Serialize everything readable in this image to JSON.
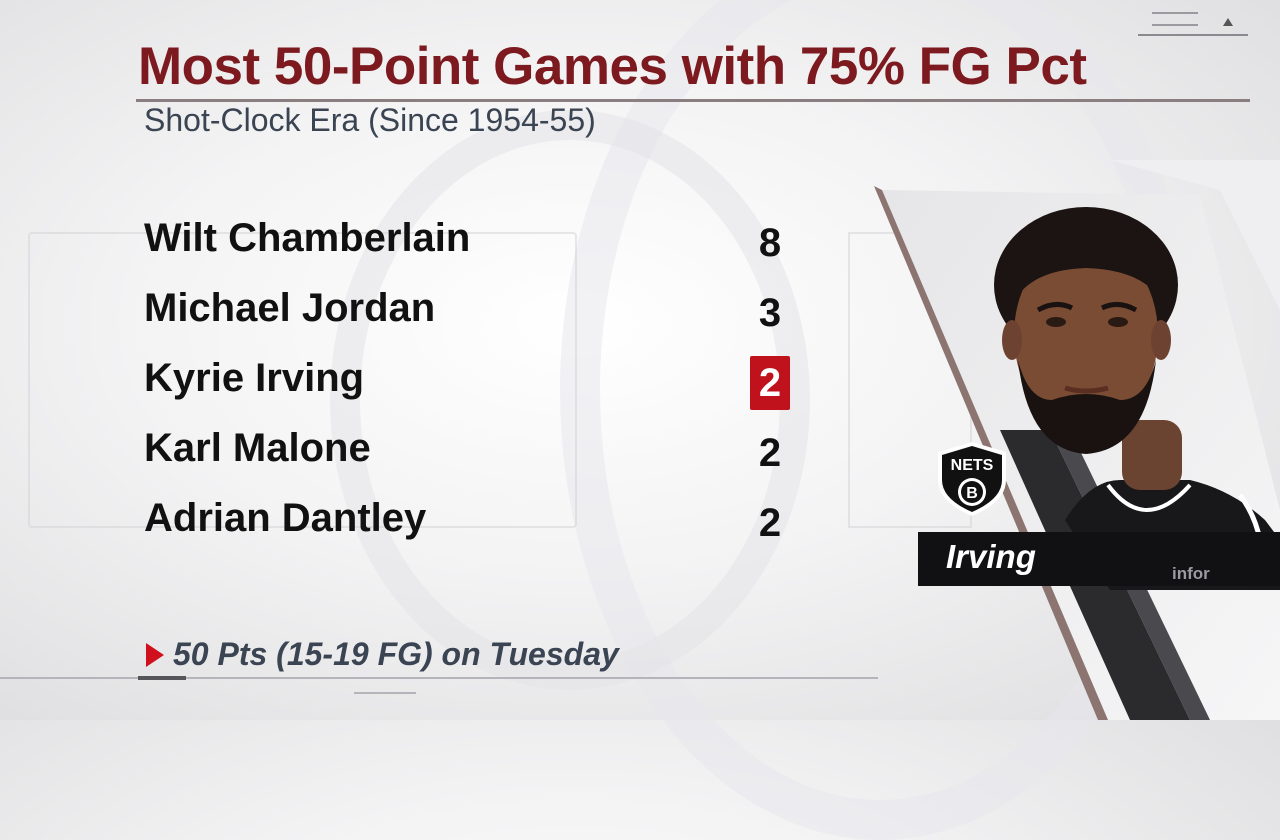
{
  "header": {
    "title": "Most 50-Point Games with 75% FG Pct",
    "subtitle": "Shot-Clock Era (Since 1954-55)"
  },
  "leaderboard": {
    "rows": [
      {
        "name": "Wilt Chamberlain",
        "value": "8",
        "highlighted": false
      },
      {
        "name": "Michael Jordan",
        "value": "3",
        "highlighted": false
      },
      {
        "name": "Kyrie Irving",
        "value": "2",
        "highlighted": true
      },
      {
        "name": "Karl Malone",
        "value": "2",
        "highlighted": false
      },
      {
        "name": "Adrian Dantley",
        "value": "2",
        "highlighted": false
      }
    ],
    "highlight_color": "#c0121c"
  },
  "footnote": {
    "text": "50 Pts (15-19 FG) on Tuesday",
    "marker_color": "#d0101c"
  },
  "player_card": {
    "name": "Irving",
    "team_logo_text": "NETS",
    "team_logo_letter": "B",
    "jersey_patch_text": "infor",
    "photo_icon": "player-headshot-icon"
  },
  "colors": {
    "title": "#7d1a1f",
    "subtitle": "#3a4452",
    "name_bar": "#111113"
  }
}
